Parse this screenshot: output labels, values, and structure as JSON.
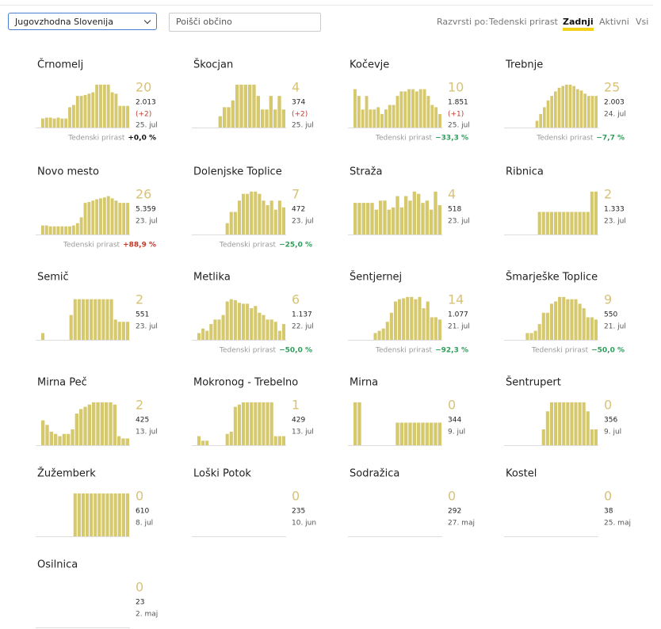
{
  "header": {
    "region": "Jugovzhodna Slovenija",
    "search_placeholder": "Poišči občino",
    "sort_label": "Razvrsti po:",
    "sort_options": [
      "Tedenski prirast",
      "Zadnji",
      "Aktivni",
      "Vsi"
    ],
    "active_sort": 1
  },
  "weekly_label": "Tedenski prirast",
  "colors": {
    "bar": "#d6c86c",
    "number": "#d8c277",
    "delta": "#c0392b"
  },
  "cards": [
    {
      "name": "Črnomelj",
      "new": 20,
      "total": "2.013",
      "delta": "(+2)",
      "date": "25. jul",
      "weekly": "+0,0 %",
      "weekly_color": "#111",
      "bars": [
        20,
        22,
        22,
        20,
        22,
        20,
        20,
        45,
        50,
        70,
        70,
        72,
        75,
        78,
        95,
        95,
        95,
        95,
        78,
        75,
        48,
        48,
        48
      ]
    },
    {
      "name": "Škocjan",
      "new": 4,
      "total": "374",
      "delta": "(+2)",
      "date": "25. jul",
      "bars": [
        0,
        0,
        0,
        0,
        0,
        25,
        45,
        45,
        60,
        95,
        95,
        95,
        95,
        95,
        70,
        40,
        40,
        70,
        40,
        70,
        40
      ]
    },
    {
      "name": "Kočevje",
      "new": 10,
      "total": "1.851",
      "delta": "(+1)",
      "date": "25. jul",
      "weekly": "−33,3 %",
      "weekly_color": "#2e9e5b",
      "bars": [
        85,
        70,
        40,
        70,
        40,
        40,
        45,
        30,
        40,
        50,
        50,
        70,
        80,
        80,
        85,
        85,
        80,
        85,
        85,
        70,
        50,
        45,
        30
      ]
    },
    {
      "name": "Trebnje",
      "new": 25,
      "total": "2.003",
      "date": "24. jul",
      "weekly": "−7,7 %",
      "weekly_color": "#2e9e5b",
      "bars": [
        0,
        0,
        0,
        0,
        0,
        0,
        0,
        15,
        30,
        45,
        60,
        70,
        80,
        88,
        92,
        95,
        95,
        92,
        85,
        82,
        75,
        70,
        70,
        70
      ]
    },
    {
      "name": "Novo mesto",
      "new": 26,
      "total": "5.359",
      "date": "23. jul",
      "weekly": "+88,9 %",
      "weekly_color": "#c0392b",
      "bars": [
        20,
        20,
        18,
        18,
        18,
        18,
        18,
        18,
        20,
        25,
        38,
        70,
        72,
        75,
        78,
        80,
        82,
        85,
        80,
        75,
        70,
        70,
        70
      ]
    },
    {
      "name": "Dolenjske Toplice",
      "new": 7,
      "total": "472",
      "date": "23. jul",
      "weekly": "−25,0 %",
      "weekly_color": "#2e9e5b",
      "bars": [
        0,
        0,
        0,
        0,
        0,
        0,
        0,
        25,
        50,
        50,
        75,
        90,
        90,
        95,
        95,
        90,
        75,
        65,
        75,
        55,
        75,
        60
      ]
    },
    {
      "name": "Straža",
      "new": 4,
      "total": "518",
      "date": "23. jul",
      "bars": [
        70,
        70,
        70,
        70,
        70,
        55,
        75,
        75,
        55,
        60,
        85,
        60,
        85,
        75,
        95,
        90,
        70,
        75,
        55,
        95,
        65
      ]
    },
    {
      "name": "Ribnica",
      "new": 2,
      "total": "1.333",
      "date": "23. jul",
      "bars": [
        0,
        0,
        0,
        0,
        0,
        0,
        0,
        50,
        50,
        50,
        50,
        50,
        50,
        50,
        50,
        50,
        50,
        50,
        50,
        50,
        95,
        95
      ]
    },
    {
      "name": "Semič",
      "new": 2,
      "total": "551",
      "date": "23. jul",
      "bars": [
        15,
        0,
        0,
        0,
        0,
        0,
        0,
        55,
        90,
        90,
        90,
        90,
        90,
        90,
        90,
        90,
        90,
        90,
        45,
        40,
        40,
        40
      ]
    },
    {
      "name": "Metlika",
      "new": 6,
      "total": "1.137",
      "date": "22. jul",
      "weekly": "−50,0 %",
      "weekly_color": "#2e9e5b",
      "bars": [
        15,
        25,
        20,
        35,
        45,
        45,
        55,
        85,
        90,
        88,
        82,
        80,
        80,
        70,
        75,
        60,
        55,
        45,
        45,
        40,
        20,
        35
      ]
    },
    {
      "name": "Šentjernej",
      "new": 14,
      "total": "1.077",
      "date": "21. jul",
      "weekly": "−92,3 %",
      "weekly_color": "#2e9e5b",
      "bars": [
        0,
        0,
        0,
        0,
        0,
        15,
        20,
        25,
        40,
        60,
        85,
        90,
        92,
        95,
        95,
        90,
        95,
        70,
        85,
        50,
        50,
        45
      ]
    },
    {
      "name": "Šmarješke Toplice",
      "new": 9,
      "total": "550",
      "date": "21. jul",
      "weekly": "−50,0 %",
      "weekly_color": "#2e9e5b",
      "bars": [
        0,
        0,
        0,
        0,
        15,
        15,
        20,
        35,
        60,
        60,
        80,
        85,
        95,
        95,
        90,
        90,
        90,
        80,
        70,
        50,
        50,
        45
      ]
    },
    {
      "name": "Mirna Peč",
      "new": 2,
      "total": "425",
      "date": "13. jul",
      "bars": [
        55,
        45,
        30,
        25,
        20,
        25,
        25,
        35,
        70,
        80,
        85,
        90,
        95,
        95,
        95,
        95,
        95,
        90,
        20,
        15,
        15
      ]
    },
    {
      "name": "Mokronog - Trebelno",
      "new": 1,
      "total": "429",
      "date": "13. jul",
      "bars": [
        20,
        10,
        10,
        0,
        0,
        0,
        0,
        25,
        30,
        85,
        90,
        95,
        95,
        95,
        95,
        95,
        95,
        95,
        95,
        20,
        20,
        20
      ]
    },
    {
      "name": "Mirna",
      "new": 0,
      "total": "344",
      "date": "9. jul",
      "bars": [
        95,
        95,
        0,
        0,
        0,
        0,
        0,
        0,
        0,
        0,
        50,
        50,
        50,
        50,
        50,
        50,
        50,
        50,
        50,
        50,
        50
      ]
    },
    {
      "name": "Šentrupert",
      "new": 0,
      "total": "356",
      "date": "9. jul",
      "bars": [
        0,
        0,
        0,
        0,
        0,
        0,
        0,
        0,
        35,
        75,
        95,
        95,
        95,
        95,
        95,
        95,
        95,
        95,
        95,
        75,
        35,
        35
      ]
    },
    {
      "name": "Žužemberk",
      "new": 0,
      "total": "610",
      "date": "8. jul",
      "bars": [
        0,
        0,
        0,
        0,
        0,
        0,
        0,
        0,
        95,
        95,
        95,
        95,
        95,
        95,
        95,
        95,
        95,
        95,
        95,
        95,
        95,
        95
      ]
    },
    {
      "name": "Loški Potok",
      "new": 0,
      "total": "235",
      "date": "10. jun"
    },
    {
      "name": "Sodražica",
      "new": 0,
      "total": "292",
      "date": "27. maj"
    },
    {
      "name": "Kostel",
      "new": 0,
      "total": "38",
      "date": "25. maj"
    },
    {
      "name": "Osilnica",
      "new": 0,
      "total": "23",
      "date": "2. maj"
    }
  ]
}
